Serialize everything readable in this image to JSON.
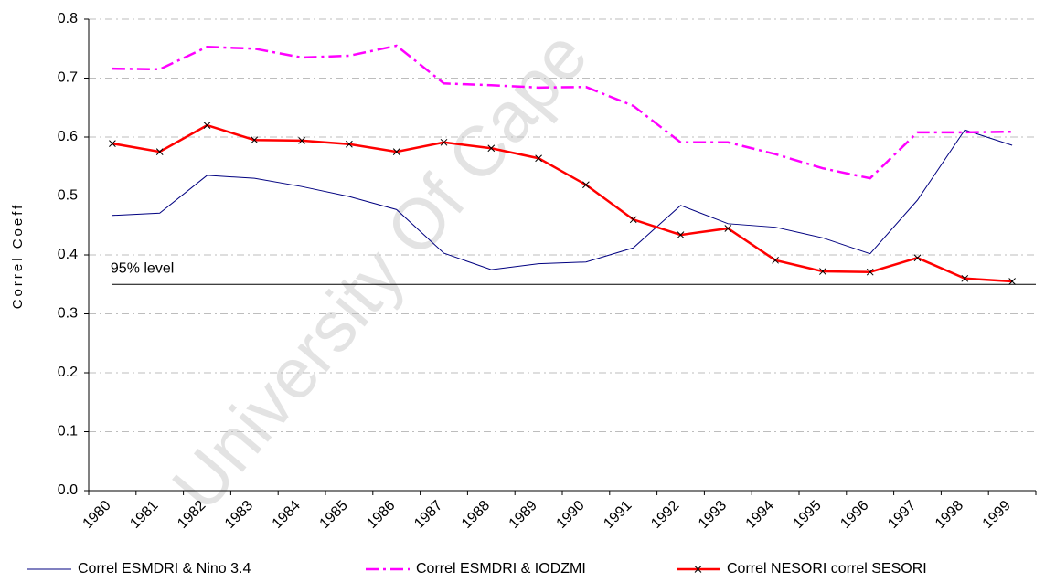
{
  "chart_data": {
    "type": "line",
    "y_label": "Correl Coeff",
    "watermark": "University Of Cape",
    "categories": [
      "1980",
      "1981",
      "1982",
      "1983",
      "1984",
      "1985",
      "1986",
      "1987",
      "1988",
      "1989",
      "1990",
      "1991",
      "1992",
      "1993",
      "1994",
      "1995",
      "1996",
      "1997",
      "1998",
      "1999"
    ],
    "series": [
      {
        "name": "Correl ESMDRI & Nino 3.4",
        "color": "#000080",
        "line_style": "solid",
        "width": 1,
        "values": [
          0.467,
          0.471,
          0.535,
          0.53,
          0.516,
          0.499,
          0.477,
          0.403,
          0.375,
          0.385,
          0.388,
          0.412,
          0.484,
          0.453,
          0.447,
          0.429,
          0.402,
          0.493,
          0.612,
          0.586
        ]
      },
      {
        "name": "Correl ESMDRI & IODZMI",
        "color": "#ff00ff",
        "line_style": "dashdot",
        "width": 2.5,
        "values": [
          0.716,
          0.715,
          0.753,
          0.75,
          0.735,
          0.738,
          0.755,
          0.691,
          0.688,
          0.684,
          0.685,
          0.653,
          0.591,
          0.591,
          0.571,
          0.547,
          0.53,
          0.608,
          0.608,
          0.609
        ]
      },
      {
        "name": "Correl NESORI correl SESORI",
        "color": "#ff0000",
        "line_style": "solid",
        "width": 2.5,
        "marker": "x",
        "values": [
          0.589,
          0.575,
          0.62,
          0.595,
          0.594,
          0.588,
          0.575,
          0.591,
          0.581,
          0.564,
          0.519,
          0.46,
          0.434,
          0.445,
          0.391,
          0.372,
          0.371,
          0.395,
          0.36,
          0.355
        ]
      }
    ],
    "reference_line": {
      "value": 0.35,
      "label": "95% level"
    },
    "ylim": [
      0,
      0.8
    ],
    "yticks": [
      {
        "value": 0,
        "label": "0.0"
      },
      0.1,
      0.2,
      0.3,
      0.4,
      0.5,
      0.6,
      0.7,
      0.8
    ],
    "grid": true,
    "legend": "bottom"
  }
}
